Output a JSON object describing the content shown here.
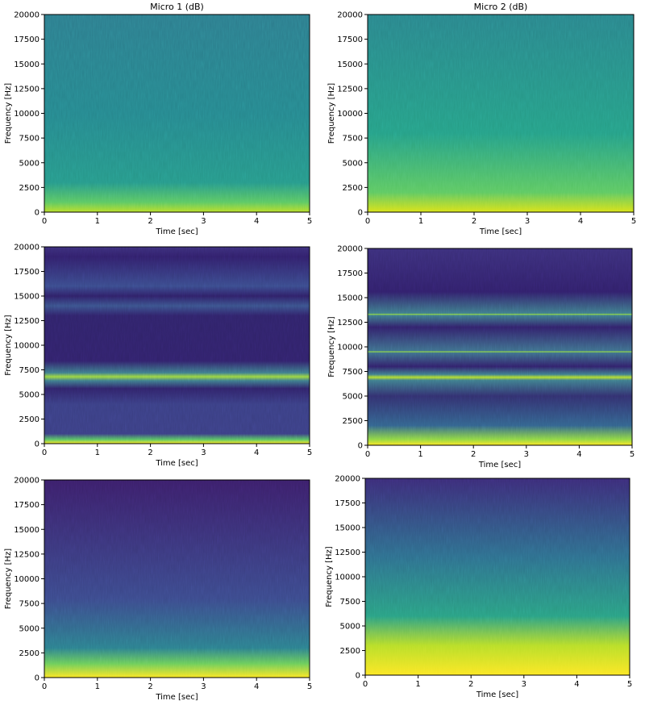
{
  "chart_data": [
    {
      "type": "spectrogram",
      "title": "Micro 1 (dB)",
      "xlabel": "Time [sec]",
      "ylabel": "Frequency [Hz]",
      "xlim": [
        0,
        5
      ],
      "xticks": [
        0,
        1,
        2,
        3,
        4,
        5
      ],
      "ylim": [
        0,
        20000
      ],
      "yticks": [
        0,
        2500,
        5000,
        7500,
        10000,
        12500,
        15000,
        17500,
        20000
      ]
    },
    {
      "type": "spectrogram",
      "title": "Micro 2 (dB)",
      "xlabel": "Time [sec]",
      "ylabel": "Frequency [Hz]",
      "xlim": [
        0,
        5
      ],
      "xticks": [
        0,
        1,
        2,
        3,
        4,
        5
      ],
      "ylim": [
        0,
        20000
      ],
      "yticks": [
        0,
        2500,
        5000,
        7500,
        10000,
        12500,
        15000,
        17500,
        20000
      ]
    },
    {
      "type": "spectrogram",
      "xlabel": "Time [sec]",
      "ylabel": "Frequency [Hz]",
      "xlim": [
        0,
        5
      ],
      "xticks": [
        0,
        1,
        2,
        3,
        4,
        5
      ],
      "ylim": [
        0,
        20000
      ],
      "yticks": [
        0,
        2500,
        5000,
        7500,
        10000,
        12500,
        15000,
        17500,
        20000
      ]
    },
    {
      "type": "spectrogram",
      "xlabel": "Time [sec]",
      "ylabel": "Frequency [Hz]",
      "xlim": [
        0,
        5
      ],
      "xticks": [
        0,
        1,
        2,
        3,
        4,
        5
      ],
      "ylim": [
        0,
        20000
      ],
      "yticks": [
        0,
        2500,
        5000,
        7500,
        10000,
        12500,
        15000,
        17500,
        20000
      ]
    },
    {
      "type": "spectrogram",
      "xlabel": "Time [sec]",
      "ylabel": "Frequency [Hz]",
      "xlim": [
        0,
        5
      ],
      "xticks": [
        0,
        1,
        2,
        3,
        4,
        5
      ],
      "ylim": [
        0,
        20000
      ],
      "yticks": [
        0,
        2500,
        5000,
        7500,
        10000,
        12500,
        15000,
        17500,
        20000
      ]
    },
    {
      "type": "spectrogram",
      "xlabel": "Time [sec]",
      "ylabel": "Frequency [Hz]",
      "xlim": [
        0,
        5
      ],
      "xticks": [
        0,
        1,
        2,
        3,
        4,
        5
      ],
      "ylim": [
        0,
        20000
      ],
      "yticks": [
        0,
        2500,
        5000,
        7500,
        10000,
        12500,
        15000,
        17500,
        20000
      ]
    }
  ]
}
